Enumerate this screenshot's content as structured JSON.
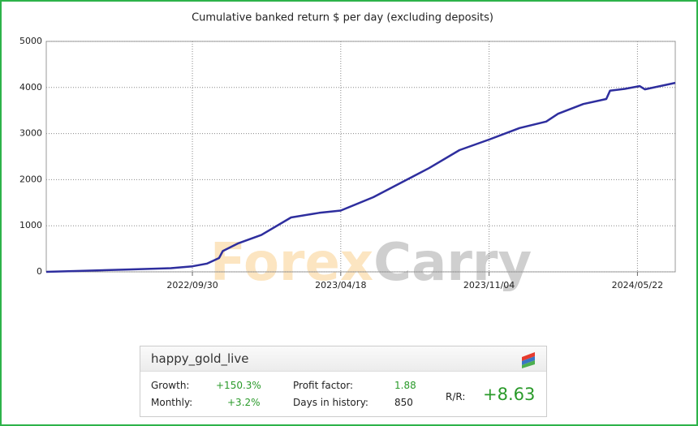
{
  "chart_data": {
    "type": "line",
    "title": "Cumulative banked return $ per day (excluding deposits)",
    "x": [
      "2022/03/17",
      "2022/05/01",
      "2022/07/01",
      "2022/09/01",
      "2022/09/30",
      "2022/10/20",
      "2022/11/05",
      "2022/11/10",
      "2022/12/01",
      "2023/01/01",
      "2023/02/10",
      "2023/03/20",
      "2023/04/18",
      "2023/06/01",
      "2023/07/15",
      "2023/08/15",
      "2023/09/25",
      "2023/11/04",
      "2023/12/15",
      "2024/01/20",
      "2024/02/05",
      "2024/03/10",
      "2024/04/10",
      "2024/04/15",
      "2024/05/05",
      "2024/05/25",
      "2024/06/01",
      "2024/07/12"
    ],
    "values": [
      0,
      20,
      50,
      80,
      120,
      180,
      300,
      450,
      620,
      800,
      1180,
      1280,
      1330,
      1620,
      1990,
      2250,
      2640,
      2870,
      3120,
      3260,
      3430,
      3640,
      3750,
      3930,
      3970,
      4030,
      3960,
      4100
    ],
    "color": "#2e2e9e",
    "xlim": [
      "2022/03/17",
      "2024/07/12"
    ],
    "xticks": [
      "2022/09/30",
      "2023/04/18",
      "2023/11/04",
      "2024/05/22"
    ],
    "ylim": [
      0,
      5000
    ],
    "yticks": [
      0,
      1000,
      2000,
      3000,
      4000,
      5000
    ],
    "grid": true
  },
  "watermark": [
    "Forex",
    "Carry"
  ],
  "widget": {
    "name": "happy_gold_live",
    "stats": [
      {
        "label": "Growth:",
        "value": "+150.3%"
      },
      {
        "label": "Monthly:",
        "value": "+3.2%"
      },
      {
        "label": "Profit factor:",
        "value": "1.88"
      },
      {
        "label": "Days in history:",
        "value": "850"
      },
      {
        "label": "R/R:",
        "value": "+8.63"
      }
    ]
  }
}
